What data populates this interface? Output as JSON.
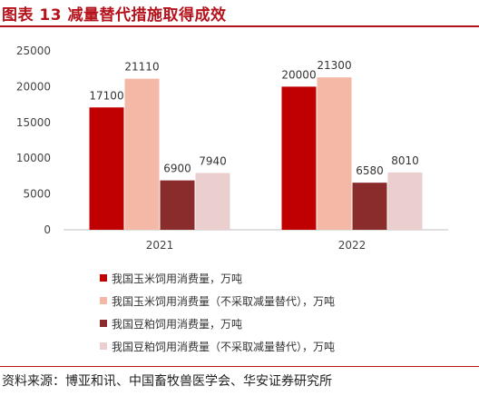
{
  "title": "图表 13  减量替代措施取得成效",
  "source": "资料来源：博亚和讯、中国畜牧兽医学会、华安证券研究所",
  "chart_data": {
    "type": "bar",
    "categories": [
      "2021",
      "2022"
    ],
    "ylim": [
      0,
      25000
    ],
    "yticks": [
      0,
      5000,
      10000,
      15000,
      20000,
      25000
    ],
    "grid": false,
    "legend_position": "bottom",
    "series": [
      {
        "name": "我国玉米饲用消费量，万吨",
        "values": [
          17100,
          20000
        ],
        "color": "#c00000"
      },
      {
        "name": "我国玉米饲用消费量（不采取减量替代），万吨",
        "values": [
          21110,
          21300
        ],
        "color": "#f4b9a6"
      },
      {
        "name": "我国豆粕饲用消费量，万吨",
        "values": [
          6900,
          6580
        ],
        "color": "#8b2c2c"
      },
      {
        "name": "我国豆粕饲用消费量（不采取减量替代），万吨",
        "values": [
          7940,
          8010
        ],
        "color": "#ebcece"
      }
    ]
  }
}
